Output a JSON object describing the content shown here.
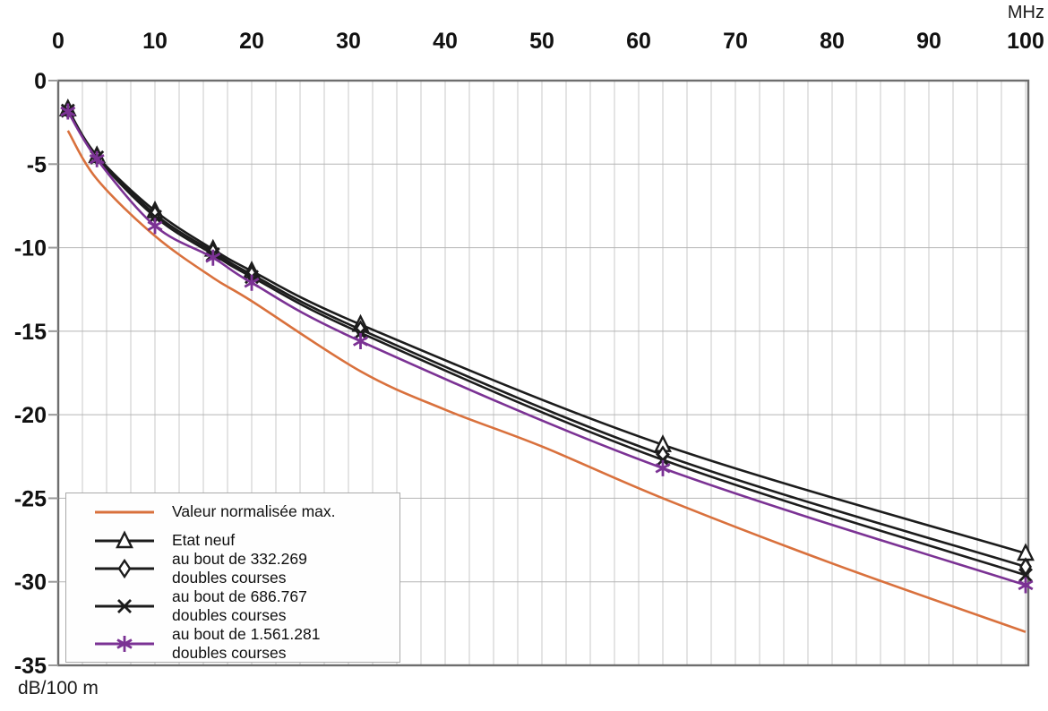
{
  "chart_data": {
    "type": "line",
    "title": "",
    "xlabel": "MHz",
    "ylabel": "dB/100 m",
    "xlim": [
      0,
      100
    ],
    "ylim": [
      -35,
      0
    ],
    "x_ticks": [
      0,
      10,
      20,
      30,
      40,
      50,
      60,
      70,
      80,
      90,
      100
    ],
    "y_ticks": [
      0,
      -5,
      -10,
      -15,
      -20,
      -25,
      -30,
      -35
    ],
    "grid": {
      "vertical_minor_step_mhz": 2.5,
      "horizontal_step_db": 5,
      "enabled": true
    },
    "legend_position": "bottom-left",
    "colors": {
      "limit_curve": "#d9713d",
      "black_series": "#1c1c1c",
      "purple_series": "#7b3294",
      "grid_vertical": "#c9c9c9",
      "grid_horizontal": "#b5b5b5",
      "frame": "#6e6e6e",
      "text": "#111111"
    },
    "series": [
      {
        "name": "Valeur normalisée max.",
        "label_line1": "Valeur normalisée max.",
        "color": "#d9713d",
        "marker": "none",
        "x": [
          1,
          4,
          10,
          16,
          20,
          31.25,
          40,
          50,
          62.5,
          80,
          100
        ],
        "y": [
          -3.0,
          -5.9,
          -9.3,
          -11.8,
          -13.2,
          -17.4,
          -19.7,
          -21.9,
          -25.0,
          -28.9,
          -33.0
        ]
      },
      {
        "name": "Etat neuf",
        "label_line1": "Etat neuf",
        "color": "#1c1c1c",
        "marker": "triangle",
        "x": [
          1,
          4,
          10,
          16,
          20,
          31.25,
          62.5,
          100
        ],
        "y": [
          -1.7,
          -4.5,
          -7.8,
          -10.1,
          -11.4,
          -14.6,
          -21.8,
          -28.3
        ]
      },
      {
        "name": "au bout de 332.269 doubles courses",
        "label_line1": "au bout de 332.269",
        "label_line2": "doubles courses",
        "color": "#1c1c1c",
        "marker": "diamond",
        "x": [
          1,
          4,
          10,
          16,
          20,
          31.25,
          62.5,
          100
        ],
        "y": [
          -1.75,
          -4.55,
          -8.0,
          -10.25,
          -11.6,
          -14.9,
          -22.4,
          -29.1
        ]
      },
      {
        "name": "au bout de 686.767 doubles courses",
        "label_line1": "au bout de 686.767",
        "label_line2": "doubles courses",
        "color": "#1c1c1c",
        "marker": "x",
        "x": [
          1,
          4,
          10,
          16,
          20,
          31.25,
          62.5,
          100
        ],
        "y": [
          -1.8,
          -4.6,
          -8.15,
          -10.4,
          -11.75,
          -15.1,
          -22.7,
          -29.6
        ]
      },
      {
        "name": "au bout de 1.561.281 doubles courses",
        "label_line1": "au bout de 1.561.281",
        "label_line2": "doubles courses",
        "color": "#7b3294",
        "marker": "star",
        "x": [
          1,
          4,
          10,
          16,
          20,
          31.25,
          62.5,
          100
        ],
        "y": [
          -1.85,
          -4.7,
          -8.7,
          -10.6,
          -12.1,
          -15.6,
          -23.2,
          -30.2
        ]
      }
    ]
  }
}
